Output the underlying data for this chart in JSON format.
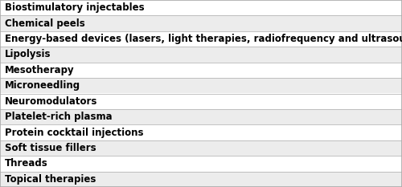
{
  "rows": [
    "Biostimulatory injectables",
    "Chemical peels",
    "Energy-based devices (lasers, light therapies, radiofrequency and ultrasound devices, etc)",
    "Lipolysis",
    "Mesotherapy",
    "Microneedling",
    "Neuromodulators",
    "Platelet-rich plasma",
    "Protein cocktail injections",
    "Soft tissue fillers",
    "Threads",
    "Topical therapies"
  ],
  "row_colors": [
    "#ffffff",
    "#ececec",
    "#ffffff",
    "#ececec",
    "#ffffff",
    "#ececec",
    "#ffffff",
    "#ececec",
    "#ffffff",
    "#ececec",
    "#ffffff",
    "#ececec"
  ],
  "border_color": "#aaaaaa",
  "text_color": "#000000",
  "font_size": 8.5,
  "fig_width": 5.0,
  "fig_height": 2.33,
  "dpi": 100
}
